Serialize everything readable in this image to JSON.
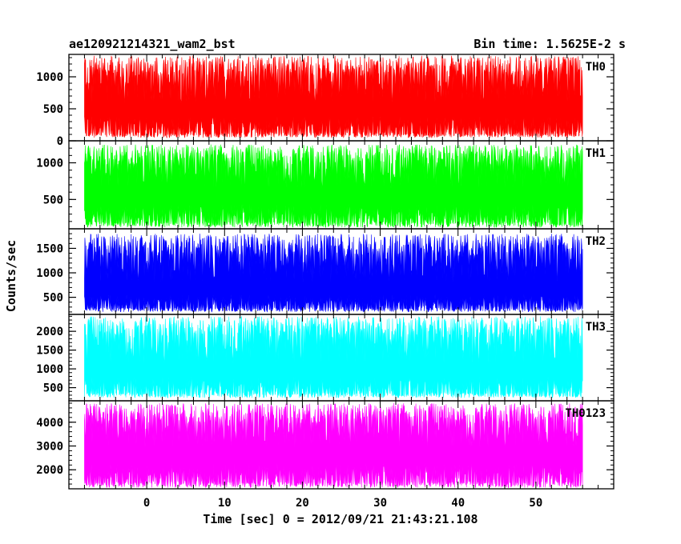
{
  "header": {
    "obs_id": "ae120921214321_wam2_bst",
    "bin_time": "Bin time: 1.5625E-2 s"
  },
  "axes": {
    "ylabel": "Counts/sec",
    "xlabel": "Time [sec] 0 = 2012/09/21 21:43:21.108"
  },
  "colors": {
    "TH0": "#ff0000",
    "TH1": "#00ff00",
    "TH2": "#0000ff",
    "TH3": "#00ffff",
    "TH0123": "#ff00ff"
  },
  "chart_data": {
    "type": "line",
    "title": "ae120921214321_wam2_bst",
    "subtitle": "Bin time: 1.5625E-2 s",
    "xlabel": "Time [sec] 0 = 2012/09/21 21:43:21.108",
    "ylabel": "Counts/sec",
    "xlim": [
      -10,
      60
    ],
    "x_range": [
      -8,
      56
    ],
    "x_ticks": [
      0,
      10,
      20,
      30,
      40,
      50
    ],
    "bin_time": 0.015625,
    "legend": "none",
    "panels": [
      {
        "name": "TH0",
        "color": "#ff0000",
        "ylim": [
          0,
          1350
        ],
        "y_ticks": [
          0,
          500,
          1000
        ],
        "baseline": 600,
        "noise_min": 50,
        "noise_max": 1330
      },
      {
        "name": "TH1",
        "color": "#00ff00",
        "ylim": [
          100,
          1300
        ],
        "y_ticks": [
          500,
          1000
        ],
        "baseline": 650,
        "noise_min": 120,
        "noise_max": 1250
      },
      {
        "name": "TH2",
        "color": "#0000ff",
        "ylim": [
          150,
          1900
        ],
        "y_ticks": [
          500,
          1000,
          1500
        ],
        "baseline": 800,
        "noise_min": 200,
        "noise_max": 1800
      },
      {
        "name": "TH3",
        "color": "#00ffff",
        "ylim": [
          150,
          2450
        ],
        "y_ticks": [
          500,
          1000,
          1500,
          2000
        ],
        "baseline": 1150,
        "noise_min": 230,
        "noise_max": 2400
      },
      {
        "name": "TH0123",
        "color": "#ff00ff",
        "ylim": [
          1200,
          4900
        ],
        "y_ticks": [
          2000,
          3000,
          4000
        ],
        "baseline": 2950,
        "noise_min": 1250,
        "noise_max": 4800
      }
    ]
  }
}
